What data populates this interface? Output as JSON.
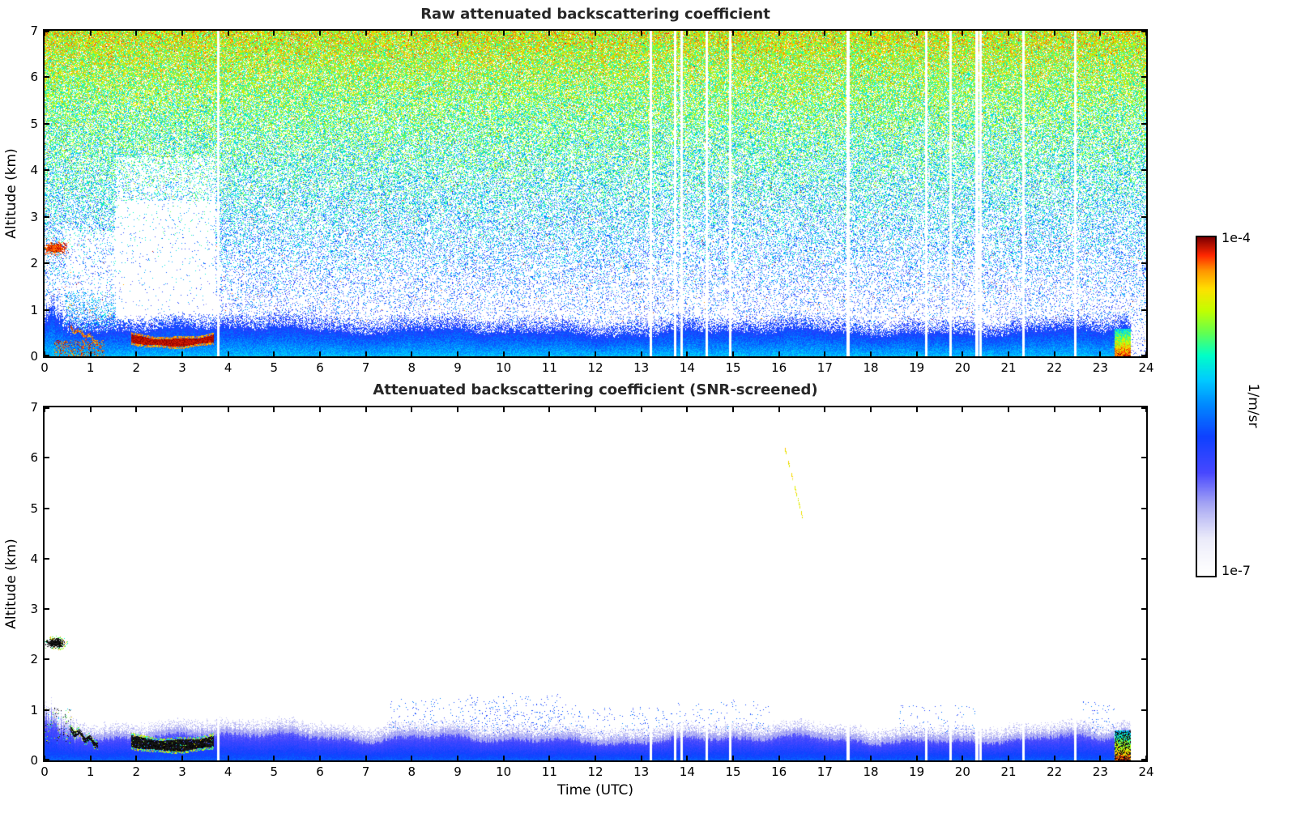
{
  "figure": {
    "background_color": "#ffffff",
    "frame_color": "#000000",
    "title_color": "#262626",
    "text_color": "#000000"
  },
  "colorbar": {
    "max_label": "1e-4",
    "min_label": "1e-7",
    "unit_label": "1/m/sr",
    "scale": "logarithmic",
    "orientation": "vertical",
    "colormap": "white-to-blue-cyan-green-yellow-red jet with white floor"
  },
  "chart_data": [
    {
      "type": "heatmap",
      "title": "Raw attenuated backscattering coefficient",
      "xlabel": "",
      "ylabel": "Altitude (km)",
      "xlim": [
        0,
        24
      ],
      "ylim": [
        0,
        7
      ],
      "xticks": [
        0,
        1,
        2,
        3,
        4,
        5,
        6,
        7,
        8,
        9,
        10,
        11,
        12,
        13,
        14,
        15,
        16,
        17,
        18,
        19,
        20,
        21,
        22,
        23,
        24
      ],
      "yticks": [
        0,
        1,
        2,
        3,
        4,
        5,
        6,
        7
      ],
      "value_units": "1/m/sr",
      "value_min": "1e-7",
      "value_max": "1e-4",
      "grid": false,
      "content_summary": "Raw lidar/ceilometer attenuated backscatter vs time (UTC) and altitude: instrument noise speckle whose value and density grow with altitude (blue low, cyan/green mid, yellow/orange/red aloft); solid blue aerosol boundary layer below ~0.5-0.8 km all day; dark-red optically thick cloud layer at ~0.2-0.45 km from ~01:55 to ~03:40 with a white attenuation shadow above it up to ~3.3 km; red elevated layer near 2.3 km just after 00:00; red near-surface returns ~00:15-01:15; faint green-yellow descending streak from ~6.2 km at 16:05 to ~4.9 km at 16:30; strong red/yellow near-surface burst ~23:20-23:40; several narrow white vertical data gaps."
    },
    {
      "type": "heatmap",
      "title": "Attenuated backscattering coefficient (SNR-screened)",
      "xlabel": "Time (UTC)",
      "ylabel": "Altitude (km)",
      "xlim": [
        0,
        24
      ],
      "ylim": [
        0,
        7
      ],
      "xticks": [
        0,
        1,
        2,
        3,
        4,
        5,
        6,
        7,
        8,
        9,
        10,
        11,
        12,
        13,
        14,
        15,
        16,
        17,
        18,
        19,
        20,
        21,
        22,
        23,
        24
      ],
      "yticks": [
        0,
        1,
        2,
        3,
        4,
        5,
        6,
        7
      ],
      "value_units": "1/m/sr",
      "value_min": "1e-7",
      "value_max": "1e-4",
      "grid": false,
      "content_summary": "Same field after SNR screening: noise removed (white background); blue boundary layer below ~0.5-1.0 km persists all day with a pale fringe at its top; saturated black returns mark the low cloud (~01:55-03:40, with green/yellow rim), an elevated blob near 2.3 km at ~00:00-00:30, a near-surface squiggle ~00:35-01:10 and the ~23:20-23:40 burst mixed with yellow/green; yellow dashed descending streak from ~6.2 km at 16:05 to ~4.9 km at 16:30; sparse blue specks just above the layer mainly 07:30-15:50; same white vertical data gaps; record ends ~23:40."
    }
  ],
  "features": {
    "data_end_time_utc": 23.66,
    "data_gap_times_utc": [
      3.78,
      13.2,
      13.73,
      13.87,
      14.42,
      14.93,
      17.5,
      19.2,
      19.73,
      20.3,
      20.38,
      21.32,
      22.45
    ],
    "gap_halfwidth_hours": 0.03,
    "low_cloud": {
      "t0": 1.88,
      "t1": 3.68,
      "alt_min_km": 0.3,
      "alt_edge_km": 0.39,
      "halfwidth_km": 0.075
    },
    "elevated_blob": {
      "t_center": 0.22,
      "alt_center_km": 2.33,
      "t_sigma": 0.2,
      "alt_sigma_km": 0.1
    },
    "morning_squiggle": {
      "t0": 0.55,
      "t1": 1.15,
      "alt_start_km": 0.62,
      "alt_end_km": 0.33
    },
    "descending_streak": {
      "t0": 16.12,
      "t1": 16.5,
      "alt_start_km": 6.2,
      "alt_end_km": 4.85
    },
    "evening_burst": {
      "t0": 23.3,
      "alt_top_km": 0.6
    }
  }
}
